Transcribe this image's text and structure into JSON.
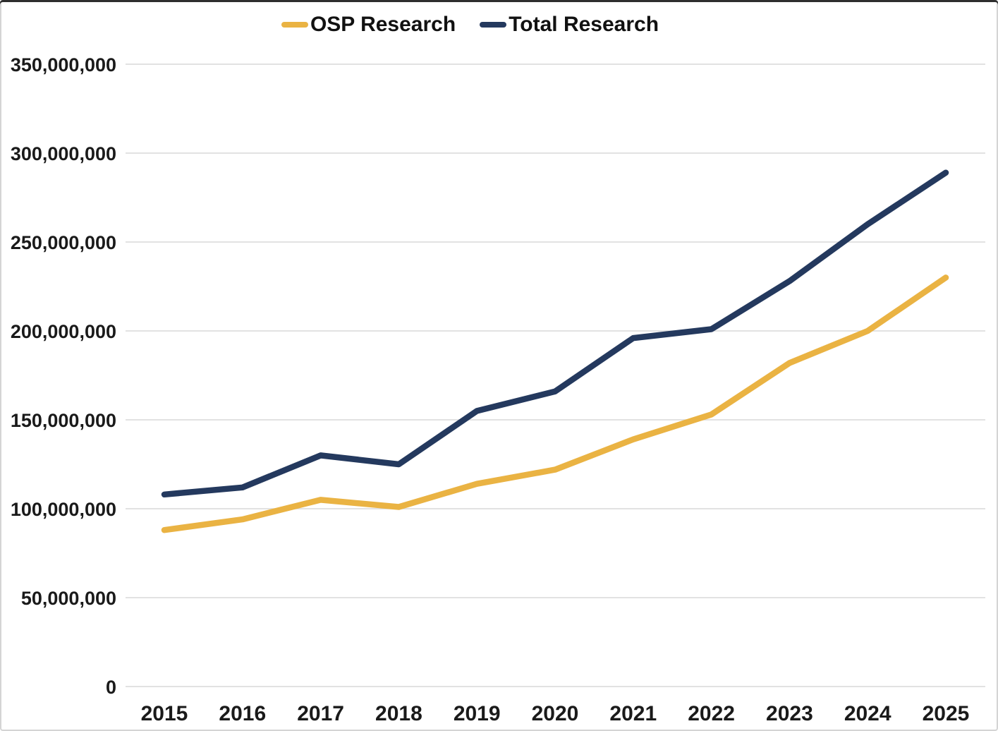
{
  "chart_data": {
    "type": "line",
    "title": "",
    "xlabel": "",
    "ylabel": "",
    "x_categories": [
      "2015",
      "2016",
      "2017",
      "2018",
      "2019",
      "2020",
      "2021",
      "2022",
      "2023",
      "2024",
      "2025"
    ],
    "series": [
      {
        "name": "OSP Research",
        "color": "#EAB343",
        "values": [
          88000000,
          94000000,
          105000000,
          101000000,
          114000000,
          122000000,
          139000000,
          153000000,
          182000000,
          200000000,
          230000000
        ]
      },
      {
        "name": "Total Research",
        "color": "#24395E",
        "values": [
          108000000,
          112000000,
          130000000,
          125000000,
          155000000,
          166000000,
          196000000,
          201000000,
          228000000,
          260000000,
          289000000
        ]
      }
    ],
    "y_axis": {
      "min": 0,
      "max": 350000000,
      "step": 50000000,
      "tick_labels": [
        "0",
        "50,000,000",
        "100,000,000",
        "150,000,000",
        "200,000,000",
        "250,000,000",
        "300,000,000",
        "350,000,000"
      ]
    },
    "legend_position": "top",
    "grid": true
  }
}
